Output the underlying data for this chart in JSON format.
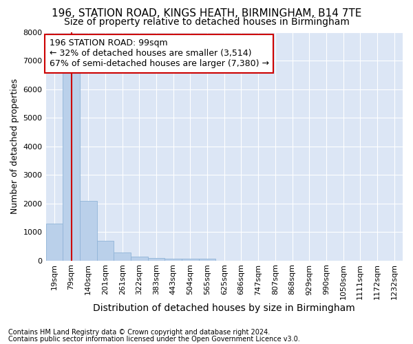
{
  "title": "196, STATION ROAD, KINGS HEATH, BIRMINGHAM, B14 7TE",
  "subtitle": "Size of property relative to detached houses in Birmingham",
  "xlabel": "Distribution of detached houses by size in Birmingham",
  "ylabel": "Number of detached properties",
  "footnote1": "Contains HM Land Registry data © Crown copyright and database right 2024.",
  "footnote2": "Contains public sector information licensed under the Open Government Licence v3.0.",
  "bar_labels": [
    "19sqm",
    "79sqm",
    "140sqm",
    "201sqm",
    "261sqm",
    "322sqm",
    "383sqm",
    "443sqm",
    "504sqm",
    "565sqm",
    "625sqm",
    "686sqm",
    "747sqm",
    "807sqm",
    "868sqm",
    "929sqm",
    "990sqm",
    "1050sqm",
    "1111sqm",
    "1172sqm",
    "1232sqm"
  ],
  "bar_values": [
    1300,
    6600,
    2080,
    680,
    290,
    140,
    90,
    55,
    55,
    55,
    0,
    0,
    0,
    0,
    0,
    0,
    0,
    0,
    0,
    0,
    0
  ],
  "bar_color": "#bad0ea",
  "bar_edge_color": "#90b4d8",
  "annotation_line1": "196 STATION ROAD: 99sqm",
  "annotation_line2": "← 32% of detached houses are smaller (3,514)",
  "annotation_line3": "67% of semi-detached houses are larger (7,380) →",
  "annotation_box_facecolor": "#ffffff",
  "annotation_box_edgecolor": "#cc0000",
  "vline_color": "#cc0000",
  "vline_x_bar_index": 1,
  "ylim_max": 8000,
  "yticks": [
    0,
    1000,
    2000,
    3000,
    4000,
    5000,
    6000,
    7000,
    8000
  ],
  "fig_bg_color": "#ffffff",
  "plot_bg_color": "#dce6f5",
  "grid_color": "#ffffff",
  "title_fontsize": 11,
  "subtitle_fontsize": 10,
  "ylabel_fontsize": 9,
  "xlabel_fontsize": 10,
  "tick_fontsize": 8,
  "annotation_fontsize": 9,
  "footnote_fontsize": 7
}
